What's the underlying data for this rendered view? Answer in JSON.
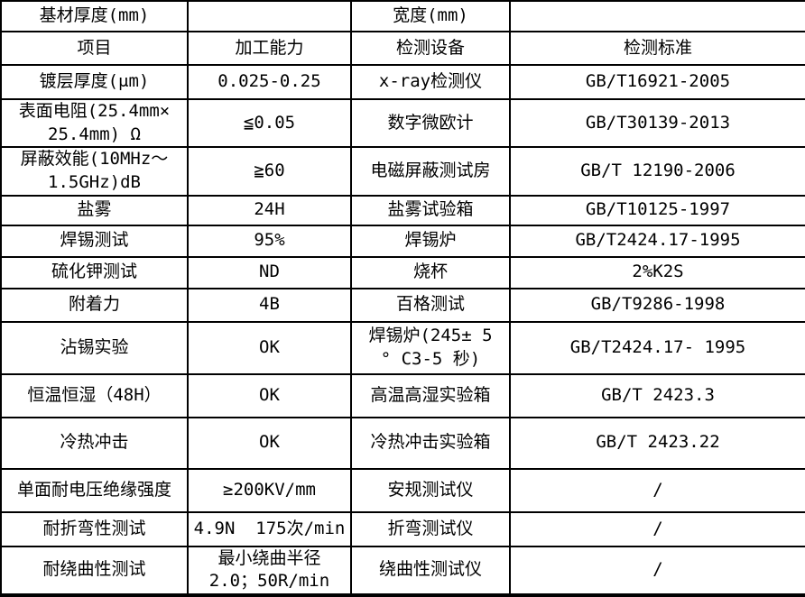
{
  "page": {
    "background_color": "#ffffff",
    "grid_color": "#000000",
    "text_color": "#000000"
  },
  "table": {
    "header_row_1": {
      "label_left": "基材厚度(mm)",
      "value_left": "",
      "label_right": "宽度(mm)",
      "value_right": ""
    },
    "column_headers": [
      "项目",
      "加工能力",
      "检测设备",
      "检测标准"
    ],
    "rows": [
      {
        "cells": [
          "基材厚度(mm)",
          "",
          "宽度(mm)",
          ""
        ]
      },
      {
        "cells": [
          "项目",
          "加工能力",
          "检测设备",
          "检测标准"
        ]
      },
      {
        "cells": [
          "镀层厚度(μm)",
          "0.025-0.25",
          "x-ray检测仪",
          "GB/T16921-2005"
        ]
      },
      {
        "cells": [
          "表面电阻(25.4mm×\n25.4mm) Ω",
          "≦0.05",
          "数字微欧计",
          "GB/T30139-2013"
        ]
      },
      {
        "cells": [
          "屏蔽效能(10MHz～\n1.5GHz)dB",
          "≧60",
          "电磁屏蔽测试房",
          "GB/T 12190-2006"
        ]
      },
      {
        "cells": [
          "盐雾",
          "24H",
          "盐雾试验箱",
          "GB/T10125-1997"
        ]
      },
      {
        "cells": [
          "焊锡测试",
          "95%",
          "焊锡炉",
          "GB/T2424.17-1995"
        ]
      },
      {
        "cells": [
          "硫化钾测试",
          "ND",
          "烧杯",
          "2%K2S"
        ]
      },
      {
        "cells": [
          "附着力",
          "4B",
          "百格测试",
          "GB/T9286-1998"
        ]
      },
      {
        "cells": [
          "沾锡实验",
          "OK",
          "焊锡炉(245± 5\n° C3-5 秒)",
          "GB/T2424.17- 1995"
        ]
      },
      {
        "cells": [
          "恒温恒湿（48H）",
          "OK",
          "高温高湿实验箱",
          "GB/T 2423.3"
        ]
      },
      {
        "cells": [
          "冷热冲击",
          "OK",
          "冷热冲击实验箱",
          "GB/T 2423.22"
        ]
      },
      {
        "cells": [
          "单面耐电压绝缘强度",
          "≥200KV/mm",
          "安规测试仪",
          "/"
        ]
      },
      {
        "cells": [
          "耐折弯性测试",
          "4.9N  175次/min",
          "折弯测试仪",
          "/"
        ]
      },
      {
        "cells": [
          "耐绕曲性测试",
          "最小绕曲半径\n2.0；50R/min",
          "绕曲性测试仪",
          "/"
        ]
      }
    ]
  }
}
